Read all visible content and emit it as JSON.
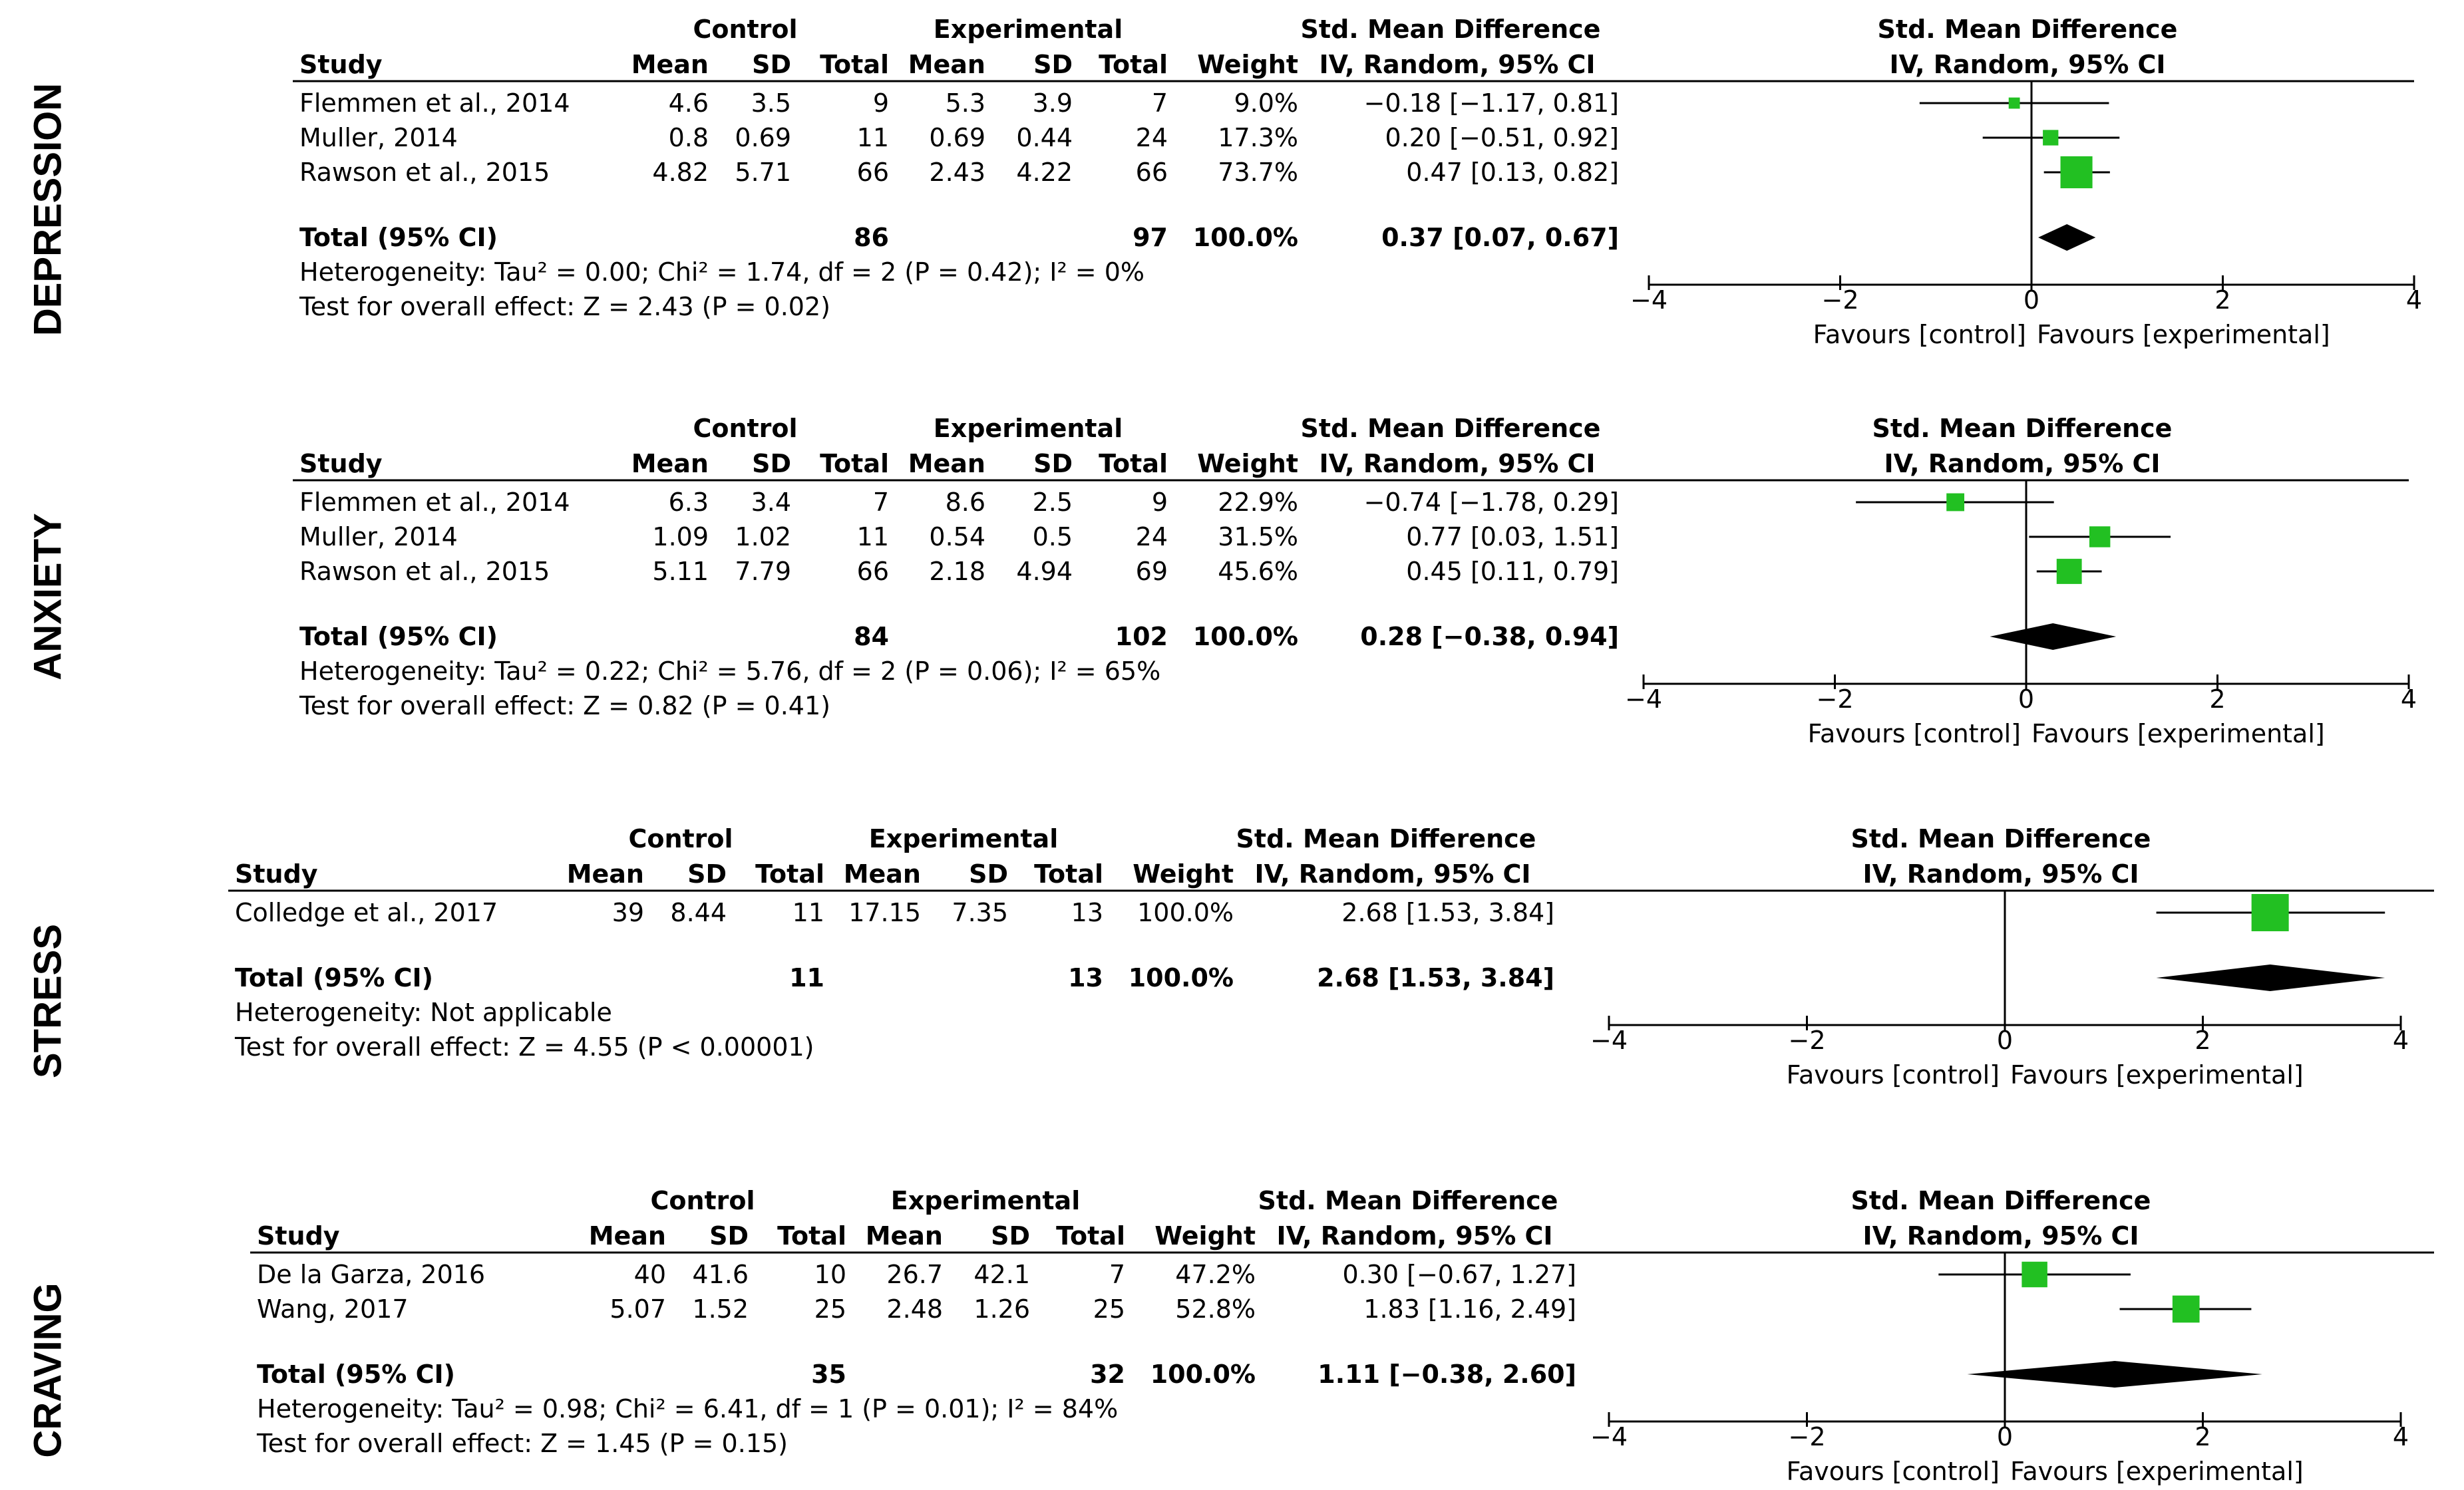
{
  "columns": {
    "group_control": "Control",
    "group_experimental": "Experimental",
    "study": "Study",
    "mean": "Mean",
    "sd": "SD",
    "total": "Total",
    "weight": "Weight",
    "smd_title": "Std. Mean Difference",
    "smd_method": "IV, Random, 95% CI"
  },
  "colors": {
    "study_marker": "#22c022",
    "summary_diamond": "#000000",
    "lines": "#000000"
  },
  "chart_data": [
    {
      "type": "forest",
      "section_label": "DEPRESSION",
      "studies": [
        {
          "study": "Flemmen et al., 2014",
          "control_mean": "4.6",
          "control_sd": "3.5",
          "control_total": "9",
          "exp_mean": "5.3",
          "exp_sd": "3.9",
          "exp_total": "7",
          "weight": "9.0%",
          "ci_text": "−0.18 [−1.17, 0.81]",
          "smd": -0.18,
          "lower": -1.17,
          "upper": 0.81,
          "weight_pct": 9.0
        },
        {
          "study": "Muller, 2014",
          "control_mean": "0.8",
          "control_sd": "0.69",
          "control_total": "11",
          "exp_mean": "0.69",
          "exp_sd": "0.44",
          "exp_total": "24",
          "weight": "17.3%",
          "ci_text": "0.20 [−0.51, 0.92]",
          "smd": 0.2,
          "lower": -0.51,
          "upper": 0.92,
          "weight_pct": 17.3
        },
        {
          "study": "Rawson et al., 2015",
          "control_mean": "4.82",
          "control_sd": "5.71",
          "control_total": "66",
          "exp_mean": "2.43",
          "exp_sd": "4.22",
          "exp_total": "66",
          "weight": "73.7%",
          "ci_text": "0.47 [0.13, 0.82]",
          "smd": 0.47,
          "lower": 0.13,
          "upper": 0.82,
          "weight_pct": 73.7
        }
      ],
      "total": {
        "label": "Total (95% CI)",
        "control_total": "86",
        "exp_total": "97",
        "weight": "100.0%",
        "ci_text": "0.37 [0.07, 0.67]",
        "smd": 0.37,
        "lower": 0.07,
        "upper": 0.67
      },
      "heterogeneity": "Heterogeneity: Tau² = 0.00; Chi² = 1.74, df = 2 (P = 0.42); I² = 0%",
      "overall_effect": "Test for overall effect: Z = 2.43 (P = 0.02)",
      "xlim": [
        -4,
        4
      ],
      "ticks": [
        "−4",
        "−2",
        "0",
        "2",
        "4"
      ],
      "favours_left": "Favours [control]",
      "favours_right": "Favours [experimental]"
    },
    {
      "type": "forest",
      "section_label": "ANXIETY",
      "studies": [
        {
          "study": "Flemmen et al., 2014",
          "control_mean": "6.3",
          "control_sd": "3.4",
          "control_total": "7",
          "exp_mean": "8.6",
          "exp_sd": "2.5",
          "exp_total": "9",
          "weight": "22.9%",
          "ci_text": "−0.74 [−1.78, 0.29]",
          "smd": -0.74,
          "lower": -1.78,
          "upper": 0.29,
          "weight_pct": 22.9
        },
        {
          "study": "Muller, 2014",
          "control_mean": "1.09",
          "control_sd": "1.02",
          "control_total": "11",
          "exp_mean": "0.54",
          "exp_sd": "0.5",
          "exp_total": "24",
          "weight": "31.5%",
          "ci_text": "0.77 [0.03, 1.51]",
          "smd": 0.77,
          "lower": 0.03,
          "upper": 1.51,
          "weight_pct": 31.5
        },
        {
          "study": "Rawson et al., 2015",
          "control_mean": "5.11",
          "control_sd": "7.79",
          "control_total": "66",
          "exp_mean": "2.18",
          "exp_sd": "4.94",
          "exp_total": "69",
          "weight": "45.6%",
          "ci_text": "0.45 [0.11, 0.79]",
          "smd": 0.45,
          "lower": 0.11,
          "upper": 0.79,
          "weight_pct": 45.6
        }
      ],
      "total": {
        "label": "Total (95% CI)",
        "control_total": "84",
        "exp_total": "102",
        "weight": "100.0%",
        "ci_text": "0.28 [−0.38, 0.94]",
        "smd": 0.28,
        "lower": -0.38,
        "upper": 0.94
      },
      "heterogeneity": "Heterogeneity: Tau² = 0.22; Chi² = 5.76, df = 2 (P = 0.06); I² = 65%",
      "overall_effect": "Test for overall effect: Z = 0.82 (P = 0.41)",
      "xlim": [
        -4,
        4
      ],
      "ticks": [
        "−4",
        "−2",
        "0",
        "2",
        "4"
      ],
      "favours_left": "Favours [control]",
      "favours_right": "Favours [experimental]"
    },
    {
      "type": "forest",
      "section_label": "STRESS",
      "studies": [
        {
          "study": "Colledge et al., 2017",
          "control_mean": "39",
          "control_sd": "8.44",
          "control_total": "11",
          "exp_mean": "17.15",
          "exp_sd": "7.35",
          "exp_total": "13",
          "weight": "100.0%",
          "ci_text": "2.68 [1.53, 3.84]",
          "smd": 2.68,
          "lower": 1.53,
          "upper": 3.84,
          "weight_pct": 100.0
        }
      ],
      "total": {
        "label": "Total (95% CI)",
        "control_total": "11",
        "exp_total": "13",
        "weight": "100.0%",
        "ci_text": "2.68 [1.53, 3.84]",
        "smd": 2.68,
        "lower": 1.53,
        "upper": 3.84
      },
      "heterogeneity": "Heterogeneity: Not applicable",
      "overall_effect": "Test for overall effect: Z = 4.55 (P < 0.00001)",
      "xlim": [
        -4,
        4
      ],
      "ticks": [
        "−4",
        "−2",
        "0",
        "2",
        "4"
      ],
      "favours_left": "Favours [control]",
      "favours_right": "Favours [experimental]"
    },
    {
      "type": "forest",
      "section_label": "CRAVING",
      "studies": [
        {
          "study": "De la Garza, 2016",
          "control_mean": "40",
          "control_sd": "41.6",
          "control_total": "10",
          "exp_mean": "26.7",
          "exp_sd": "42.1",
          "exp_total": "7",
          "weight": "47.2%",
          "ci_text": "0.30 [−0.67, 1.27]",
          "smd": 0.3,
          "lower": -0.67,
          "upper": 1.27,
          "weight_pct": 47.2
        },
        {
          "study": "Wang, 2017",
          "control_mean": "5.07",
          "control_sd": "1.52",
          "control_total": "25",
          "exp_mean": "2.48",
          "exp_sd": "1.26",
          "exp_total": "25",
          "weight": "52.8%",
          "ci_text": "1.83 [1.16, 2.49]",
          "smd": 1.83,
          "lower": 1.16,
          "upper": 2.49,
          "weight_pct": 52.8
        }
      ],
      "total": {
        "label": "Total (95% CI)",
        "control_total": "35",
        "exp_total": "32",
        "weight": "100.0%",
        "ci_text": "1.11 [−0.38, 2.60]",
        "smd": 1.11,
        "lower": -0.38,
        "upper": 2.6
      },
      "heterogeneity": "Heterogeneity: Tau² = 0.98; Chi² = 6.41, df = 1 (P = 0.01); I² = 84%",
      "overall_effect": "Test for overall effect: Z = 1.45 (P = 0.15)",
      "xlim": [
        -4,
        4
      ],
      "ticks": [
        "−4",
        "−2",
        "0",
        "2",
        "4"
      ],
      "favours_left": "Favours [control]",
      "favours_right": "Favours [experimental]"
    }
  ]
}
